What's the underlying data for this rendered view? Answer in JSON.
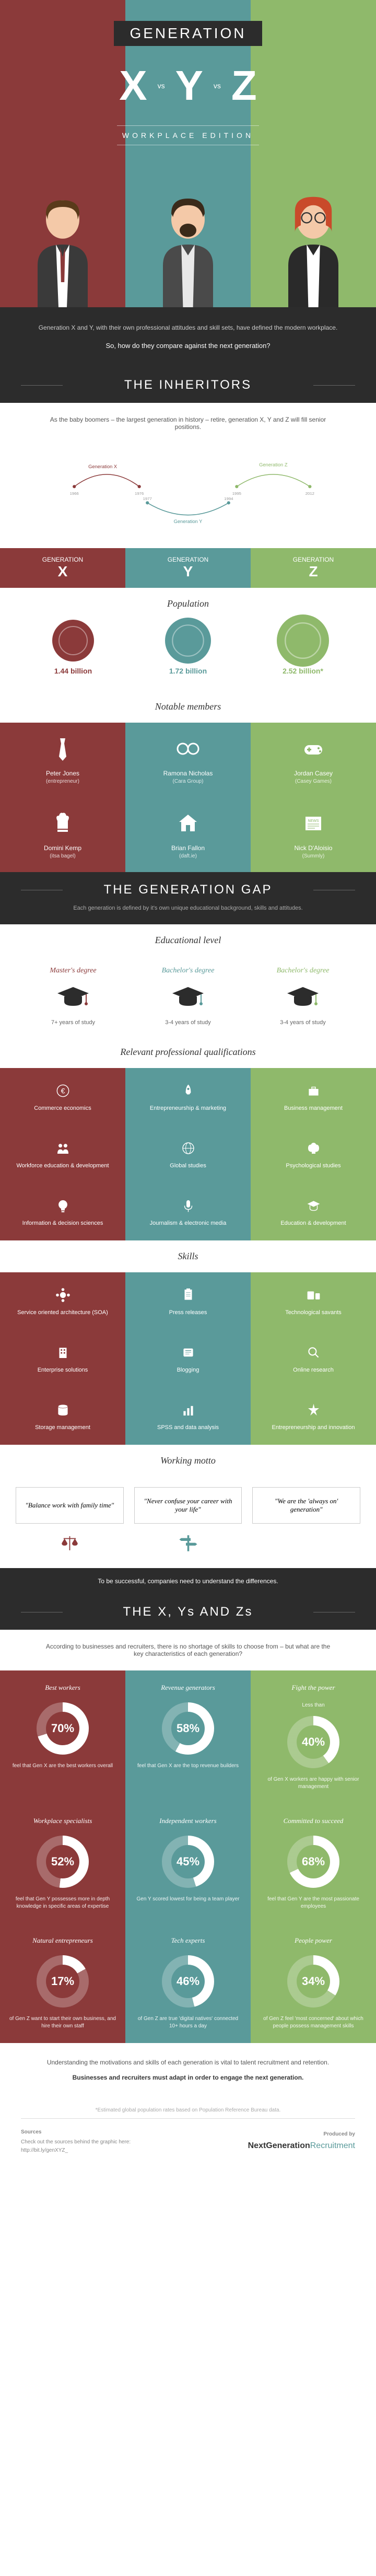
{
  "hero": {
    "title": "GENERATION",
    "x": "X",
    "y": "Y",
    "z": "Z",
    "vs": "vs",
    "subtitle": "WORKPLACE EDITION"
  },
  "colors": {
    "x": "#8b3a3a",
    "y": "#5a9a9a",
    "z": "#8fb96b",
    "dark": "#2c2c2c"
  },
  "intro": {
    "text": "Generation X and Y, with their own professional attitudes and skill sets, have defined the modern workplace.",
    "question": "So, how do they compare against the next generation?"
  },
  "inheritors": {
    "title": "THE INHERITORS",
    "text": "As the baby boomers – the largest generation in history – retire, generation X, Y and Z will fill senior positions.",
    "labels": {
      "x": "Generation X",
      "y": "Generation Y",
      "z": "Generation Z"
    },
    "years": {
      "x_start": "1966",
      "x_end": "1976",
      "y_start": "1977",
      "y_end": "1994",
      "z_start": "1995",
      "z_end": "2012"
    }
  },
  "gen_headers": {
    "label": "GENERATION",
    "x": "X",
    "y": "Y",
    "z": "Z"
  },
  "population": {
    "title": "Population",
    "x": "1.44 billion",
    "y": "1.72 billion",
    "z": "2.52 billion*"
  },
  "notable": {
    "title": "Notable members",
    "items": [
      {
        "name": "Peter Jones",
        "sub": "(entrepreneur)",
        "color": "#8b3a3a",
        "icon": "tie"
      },
      {
        "name": "Ramona Nicholas",
        "sub": "(Cara Group)",
        "color": "#5a9a9a",
        "icon": "glasses"
      },
      {
        "name": "Jordan Casey",
        "sub": "(Casey Games)",
        "color": "#8fb96b",
        "icon": "gamepad"
      },
      {
        "name": "Domini Kemp",
        "sub": "(itsa bagel)",
        "color": "#8b3a3a",
        "icon": "chef"
      },
      {
        "name": "Brian Fallon",
        "sub": "(daft.ie)",
        "color": "#5a9a9a",
        "icon": "house"
      },
      {
        "name": "Nick D'Aloisio",
        "sub": "(Summly)",
        "color": "#8fb96b",
        "icon": "news"
      }
    ]
  },
  "gap": {
    "title": "THE GENERATION GAP",
    "text": "Each generation is defined by it's own unique educational background, skills and attitudes."
  },
  "education": {
    "title": "Educational level",
    "items": [
      {
        "degree": "Master's degree",
        "years": "7+ years of study",
        "color": "#8b3a3a"
      },
      {
        "degree": "Bachelor's degree",
        "years": "3-4 years of study",
        "color": "#5a9a9a"
      },
      {
        "degree": "Bachelor's degree",
        "years": "3-4 years of study",
        "color": "#8fb96b"
      }
    ]
  },
  "qualifications": {
    "title": "Relevant professional qualifications",
    "items": [
      {
        "label": "Commerce economics",
        "color": "#8b3a3a",
        "icon": "euro"
      },
      {
        "label": "Entrepreneurship & marketing",
        "color": "#5a9a9a",
        "icon": "rocket"
      },
      {
        "label": "Business management",
        "color": "#8fb96b",
        "icon": "briefcase"
      },
      {
        "label": "Workforce education & development",
        "color": "#8b3a3a",
        "icon": "people"
      },
      {
        "label": "Global studies",
        "color": "#5a9a9a",
        "icon": "globe"
      },
      {
        "label": "Psychological studies",
        "color": "#8fb96b",
        "icon": "brain"
      },
      {
        "label": "Information & decision sciences",
        "color": "#8b3a3a",
        "icon": "bulb"
      },
      {
        "label": "Journalism & electronic media",
        "color": "#5a9a9a",
        "icon": "mic"
      },
      {
        "label": "Education & development",
        "color": "#8fb96b",
        "icon": "grad"
      }
    ]
  },
  "skills": {
    "title": "Skills",
    "items": [
      {
        "label": "Service oriented architecture (SOA)",
        "color": "#8b3a3a",
        "icon": "service"
      },
      {
        "label": "Press releases",
        "color": "#5a9a9a",
        "icon": "clipboard"
      },
      {
        "label": "Technological savants",
        "color": "#8fb96b",
        "icon": "devices"
      },
      {
        "label": "Enterprise solutions",
        "color": "#8b3a3a",
        "icon": "building"
      },
      {
        "label": "Blogging",
        "color": "#5a9a9a",
        "icon": "blog"
      },
      {
        "label": "Online research",
        "color": "#8fb96b",
        "icon": "search"
      },
      {
        "label": "Storage management",
        "color": "#8b3a3a",
        "icon": "storage"
      },
      {
        "label": "SPSS and data analysis",
        "color": "#5a9a9a",
        "icon": "chart"
      },
      {
        "label": "Entrepreneurship and innovation",
        "color": "#8fb96b",
        "icon": "spark"
      }
    ]
  },
  "motto": {
    "title": "Working motto",
    "items": [
      {
        "text": "\"Balance work with family time\"",
        "color": "#8b3a3a",
        "icon": "scales"
      },
      {
        "text": "\"Never confuse your career with your life\"",
        "color": "#5a9a9a",
        "icon": "signpost"
      },
      {
        "text": "\"We are the 'always on' generation\"",
        "color": "#8fb96b",
        "icon": "bulb"
      }
    ],
    "footer": "To be successful, companies need to understand the differences."
  },
  "xyz": {
    "title": "THE X, Ys AND Zs",
    "intro": "According to businesses and recruiters, there is no shortage of skills to choose from – but what are the key characteristics of each generation?",
    "stats": [
      {
        "label": "Best workers",
        "pct": 70,
        "val": "70%",
        "desc": "feel that Gen X are the best workers overall",
        "color": "#8b3a3a"
      },
      {
        "label": "Revenue generators",
        "pct": 58,
        "val": "58%",
        "desc": "feel that Gen X are the top revenue builders",
        "color": "#5a9a9a"
      },
      {
        "label": "Fight the power",
        "sub": "Less than",
        "pct": 40,
        "val": "40%",
        "desc": "of Gen X workers are happy with senior management",
        "color": "#8fb96b"
      },
      {
        "label": "Workplace specialists",
        "pct": 52,
        "val": "52%",
        "desc": "feel that Gen Y possesses more in depth knowledge in specific areas of expertise",
        "color": "#8b3a3a"
      },
      {
        "label": "Independent workers",
        "pct": 45,
        "val": "45%",
        "desc": "Gen Y scored lowest for being a team player",
        "color": "#5a9a9a"
      },
      {
        "label": "Committed to succeed",
        "pct": 68,
        "val": "68%",
        "desc": "feel that Gen Y are the most passionate employees",
        "color": "#8fb96b"
      },
      {
        "label": "Natural entrepreneurs",
        "pct": 17,
        "val": "17%",
        "desc": "of Gen Z want to start their own business, and hire their own staff",
        "color": "#8b3a3a"
      },
      {
        "label": "Tech experts",
        "pct": 46,
        "val": "46%",
        "desc": "of Gen Z are true 'digital natives' connected 10+ hours a day",
        "color": "#5a9a9a"
      },
      {
        "label": "People power",
        "pct": 34,
        "val": "34%",
        "desc": "of Gen Z feel 'most concerned' about which people possess management skills",
        "color": "#8fb96b"
      }
    ]
  },
  "conclusion": {
    "text": "Understanding the motivations and skills of each generation is vital to talent recruitment and retention.",
    "bold": "Businesses and recruiters must adapt in order to engage the next generation."
  },
  "footer": {
    "note": "*Estimated global population rates based on Population Reference Bureau data.",
    "sources_label": "Sources",
    "produced_label": "Produced by",
    "sources_text": "Check out the sources behind the graphic here:",
    "url": "http://bit.ly/genXYZ_",
    "logo1": "NextGeneration",
    "logo2": "Recruitment"
  }
}
